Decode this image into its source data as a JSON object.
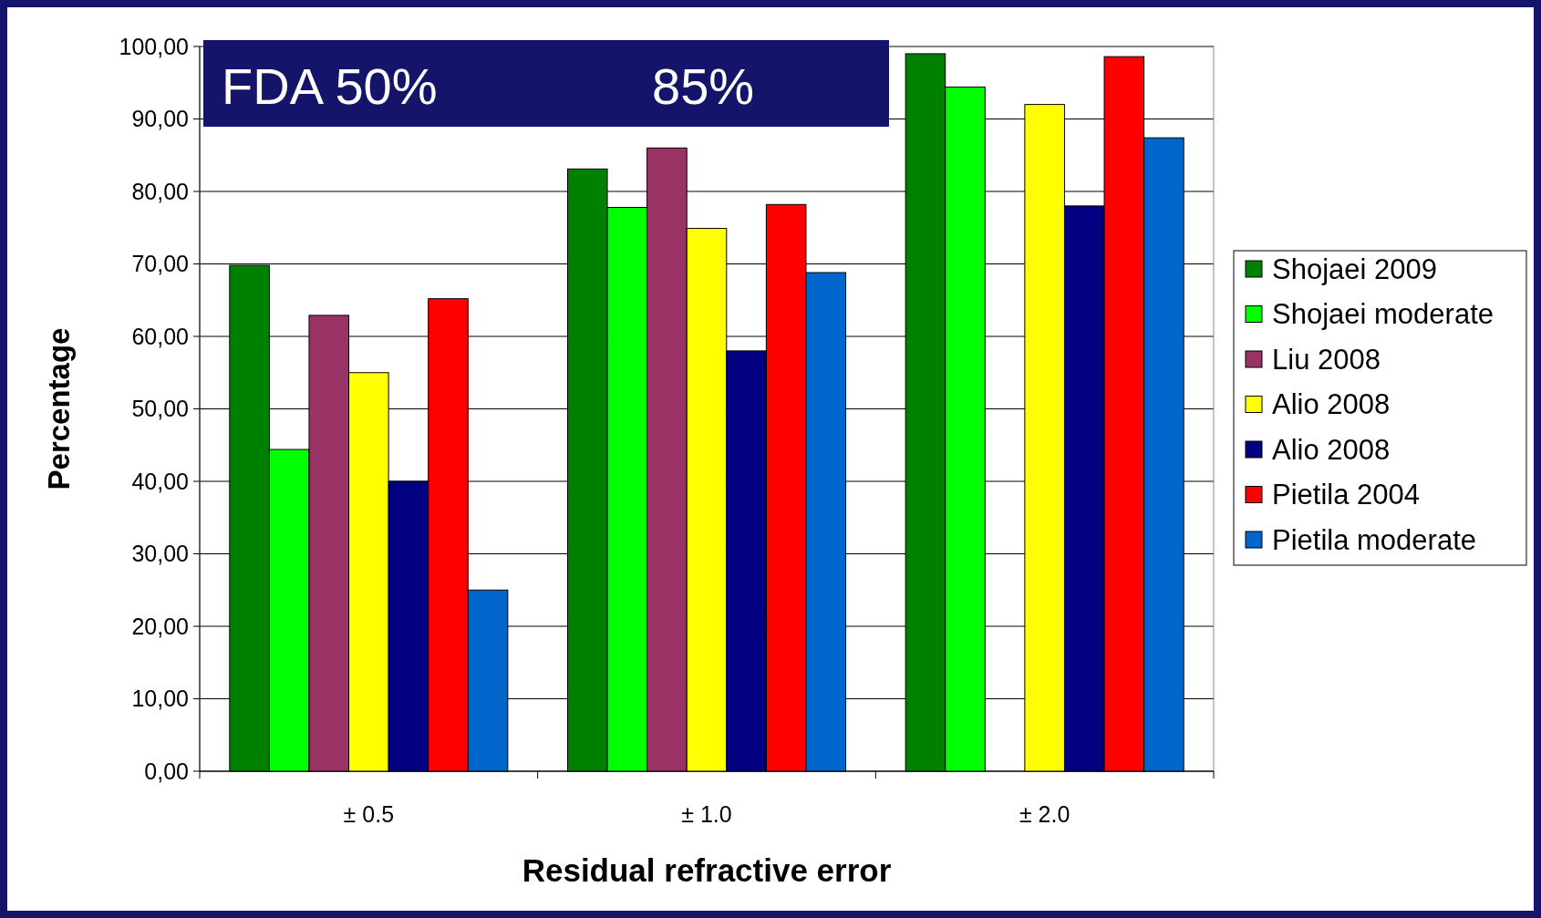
{
  "chart_data": {
    "type": "bar",
    "xlabel": "Residual refractive error",
    "ylabel": "Percentage",
    "annotations": [
      "FDA 50%",
      "85%"
    ],
    "categories": [
      "± 0.5",
      "± 1.0",
      "± 2.0"
    ],
    "series": [
      {
        "name": "Shojaei 2009",
        "color": "#008000",
        "values": [
          69.8,
          83.1,
          99
        ]
      },
      {
        "name": "Shojaei moderate",
        "color": "#00ff00",
        "values": [
          44.4,
          77.8,
          94.4
        ]
      },
      {
        "name": "Liu 2008",
        "color": "#993366",
        "values": [
          62.9,
          86,
          null
        ]
      },
      {
        "name": "Alio 2008",
        "color": "#ffff00",
        "values": [
          55,
          74.9,
          92
        ]
      },
      {
        "name": "Alio 2008",
        "color": "#000080",
        "values": [
          40,
          58,
          78
        ]
      },
      {
        "name": "Pietila 2004",
        "color": "#ff0000",
        "values": [
          65.2,
          78.2,
          98.6
        ]
      },
      {
        "name": "Pietila moderate",
        "color": "#0066cc",
        "values": [
          25,
          68.8,
          87.4
        ]
      }
    ],
    "ylim": [
      0,
      100
    ],
    "yticks": [
      {
        "value": 0,
        "label": "0,00"
      },
      {
        "value": 10,
        "label": "10,00"
      },
      {
        "value": 20,
        "label": "20,00"
      },
      {
        "value": 30,
        "label": "30,00"
      },
      {
        "value": 40,
        "label": "40,00"
      },
      {
        "value": 50,
        "label": "50,00"
      },
      {
        "value": 60,
        "label": "60,00"
      },
      {
        "value": 70,
        "label": "70,00"
      },
      {
        "value": 80,
        "label": "80,00"
      },
      {
        "value": 90,
        "label": "90,00"
      },
      {
        "value": 100,
        "label": "100,00"
      }
    ],
    "grid": "y",
    "legend": "right"
  }
}
